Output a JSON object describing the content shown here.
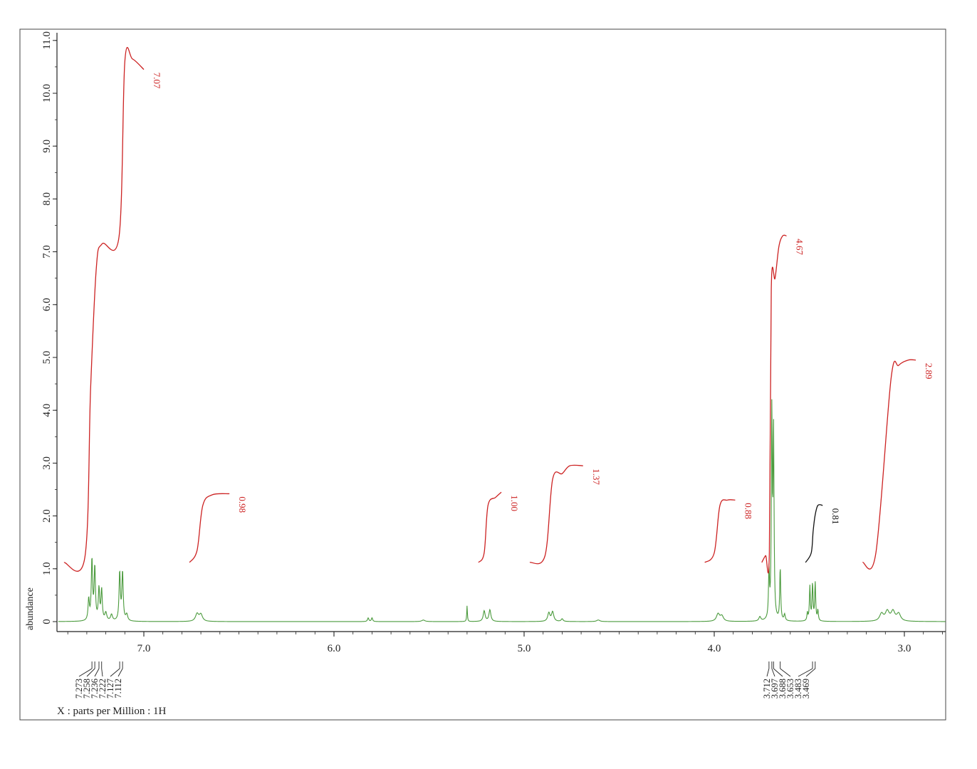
{
  "chart_data": {
    "type": "line",
    "title": "",
    "xlabel": "X : parts per Million : 1H",
    "ylabel": "abundance",
    "xlim": [
      7.45,
      2.78
    ],
    "ylim": [
      -0.2,
      11.2
    ],
    "x_reversed": true,
    "x_ticks": [
      {
        "value": 7.0,
        "label": "7.0"
      },
      {
        "value": 6.0,
        "label": "6.0"
      },
      {
        "value": 5.0,
        "label": "5.0"
      },
      {
        "value": 4.0,
        "label": "4.0"
      },
      {
        "value": 3.0,
        "label": "3.0"
      }
    ],
    "y_ticks": [
      {
        "value": 0,
        "label": "0"
      },
      {
        "value": 1.0,
        "label": "1.0"
      },
      {
        "value": 2.0,
        "label": "2.0"
      },
      {
        "value": 3.0,
        "label": "3.0"
      },
      {
        "value": 4.0,
        "label": "4.0"
      },
      {
        "value": 5.0,
        "label": "5.0"
      },
      {
        "value": 6.0,
        "label": "6.0"
      },
      {
        "value": 7.0,
        "label": "7.0"
      },
      {
        "value": 8.0,
        "label": "8.0"
      },
      {
        "value": 9.0,
        "label": "9.0"
      },
      {
        "value": 10.0,
        "label": "10.0"
      },
      {
        "value": 11.0,
        "label": "11.0"
      }
    ],
    "spectrum_color": "#4a9a3c",
    "spectrum_peaks": [
      {
        "ppm": 7.29,
        "height": 0.4,
        "width": 0.004
      },
      {
        "ppm": 7.273,
        "height": 1.15,
        "width": 0.004
      },
      {
        "ppm": 7.258,
        "height": 1.0,
        "width": 0.004
      },
      {
        "ppm": 7.236,
        "height": 0.6,
        "width": 0.004
      },
      {
        "ppm": 7.222,
        "height": 0.58,
        "width": 0.004
      },
      {
        "ppm": 7.2,
        "height": 0.15,
        "width": 0.006
      },
      {
        "ppm": 7.17,
        "height": 0.12,
        "width": 0.006
      },
      {
        "ppm": 7.127,
        "height": 0.92,
        "width": 0.004
      },
      {
        "ppm": 7.112,
        "height": 0.92,
        "width": 0.004
      },
      {
        "ppm": 7.09,
        "height": 0.12,
        "width": 0.006
      },
      {
        "ppm": 6.72,
        "height": 0.14,
        "width": 0.01
      },
      {
        "ppm": 6.7,
        "height": 0.13,
        "width": 0.01
      },
      {
        "ppm": 5.82,
        "height": 0.07,
        "width": 0.004
      },
      {
        "ppm": 5.8,
        "height": 0.07,
        "width": 0.004
      },
      {
        "ppm": 5.53,
        "height": 0.03,
        "width": 0.01
      },
      {
        "ppm": 5.3,
        "height": 0.3,
        "width": 0.002
      },
      {
        "ppm": 5.21,
        "height": 0.2,
        "width": 0.006
      },
      {
        "ppm": 5.18,
        "height": 0.22,
        "width": 0.006
      },
      {
        "ppm": 4.87,
        "height": 0.16,
        "width": 0.007
      },
      {
        "ppm": 4.85,
        "height": 0.18,
        "width": 0.007
      },
      {
        "ppm": 4.8,
        "height": 0.05,
        "width": 0.006
      },
      {
        "ppm": 4.61,
        "height": 0.03,
        "width": 0.01
      },
      {
        "ppm": 3.98,
        "height": 0.14,
        "width": 0.01
      },
      {
        "ppm": 3.96,
        "height": 0.1,
        "width": 0.01
      },
      {
        "ppm": 3.76,
        "height": 0.08,
        "width": 0.006
      },
      {
        "ppm": 3.712,
        "height": 0.9,
        "width": 0.003
      },
      {
        "ppm": 3.697,
        "height": 3.85,
        "width": 0.003
      },
      {
        "ppm": 3.688,
        "height": 3.45,
        "width": 0.003
      },
      {
        "ppm": 3.653,
        "height": 1.0,
        "width": 0.003
      },
      {
        "ppm": 3.63,
        "height": 0.12,
        "width": 0.004
      },
      {
        "ppm": 3.51,
        "height": 0.15,
        "width": 0.003
      },
      {
        "ppm": 3.497,
        "height": 0.65,
        "width": 0.003
      },
      {
        "ppm": 3.483,
        "height": 0.7,
        "width": 0.003
      },
      {
        "ppm": 3.469,
        "height": 0.72,
        "width": 0.003
      },
      {
        "ppm": 3.455,
        "height": 0.2,
        "width": 0.003
      },
      {
        "ppm": 3.12,
        "height": 0.14,
        "width": 0.012
      },
      {
        "ppm": 3.09,
        "height": 0.18,
        "width": 0.012
      },
      {
        "ppm": 3.06,
        "height": 0.18,
        "width": 0.012
      },
      {
        "ppm": 3.03,
        "height": 0.14,
        "width": 0.012
      }
    ],
    "integrals": [
      {
        "label": "7.07",
        "color": "#cc2222",
        "points": [
          [
            7.42,
            1.12
          ],
          [
            7.31,
            1.22
          ],
          [
            7.28,
            4.4
          ],
          [
            7.25,
            6.7
          ],
          [
            7.22,
            7.15
          ],
          [
            7.13,
            7.3
          ],
          [
            7.1,
            10.6
          ],
          [
            7.06,
            10.65
          ],
          [
            7.0,
            10.45
          ]
        ]
      },
      {
        "label": "0.98",
        "color": "#cc2222",
        "points": [
          [
            6.76,
            1.12
          ],
          [
            6.72,
            1.35
          ],
          [
            6.69,
            2.2
          ],
          [
            6.64,
            2.4
          ],
          [
            6.55,
            2.42
          ]
        ]
      },
      {
        "label": "1.00",
        "color": "#cc2222",
        "points": [
          [
            5.24,
            1.12
          ],
          [
            5.21,
            1.3
          ],
          [
            5.19,
            2.2
          ],
          [
            5.15,
            2.35
          ],
          [
            5.12,
            2.45
          ]
        ]
      },
      {
        "label": "1.37",
        "color": "#cc2222",
        "points": [
          [
            4.97,
            1.12
          ],
          [
            4.89,
            1.25
          ],
          [
            4.85,
            2.7
          ],
          [
            4.8,
            2.8
          ],
          [
            4.76,
            2.95
          ],
          [
            4.69,
            2.95
          ]
        ]
      },
      {
        "label": "0.88",
        "color": "#cc2222",
        "points": [
          [
            4.05,
            1.12
          ],
          [
            4.0,
            1.3
          ],
          [
            3.97,
            2.2
          ],
          [
            3.93,
            2.3
          ],
          [
            3.89,
            2.3
          ]
        ]
      },
      {
        "label": "4.67",
        "color": "#cc2222",
        "points": [
          [
            3.75,
            1.12
          ],
          [
            3.73,
            1.25
          ],
          [
            3.71,
            1.3
          ],
          [
            3.7,
            6.3
          ],
          [
            3.68,
            6.5
          ],
          [
            3.66,
            7.1
          ],
          [
            3.64,
            7.3
          ],
          [
            3.62,
            7.3
          ]
        ]
      },
      {
        "label": "0.81",
        "color": "#111111",
        "points": [
          [
            3.52,
            1.12
          ],
          [
            3.49,
            1.3
          ],
          [
            3.48,
            1.7
          ],
          [
            3.47,
            2.0
          ],
          [
            3.455,
            2.2
          ],
          [
            3.43,
            2.2
          ]
        ]
      },
      {
        "label": "2.89",
        "color": "#cc2222",
        "points": [
          [
            3.22,
            1.12
          ],
          [
            3.15,
            1.3
          ],
          [
            3.07,
            4.6
          ],
          [
            3.03,
            4.85
          ],
          [
            2.98,
            4.95
          ],
          [
            2.94,
            4.95
          ]
        ]
      }
    ],
    "peak_labels_left": [
      "7.273",
      "7.258",
      "7.236",
      "7.222",
      "7.127",
      "7.112"
    ],
    "peak_labels_right": [
      "3.712",
      "3.697",
      "3.688",
      "3.653",
      "3.483",
      "3.469"
    ],
    "grid": false,
    "legend": "none"
  }
}
